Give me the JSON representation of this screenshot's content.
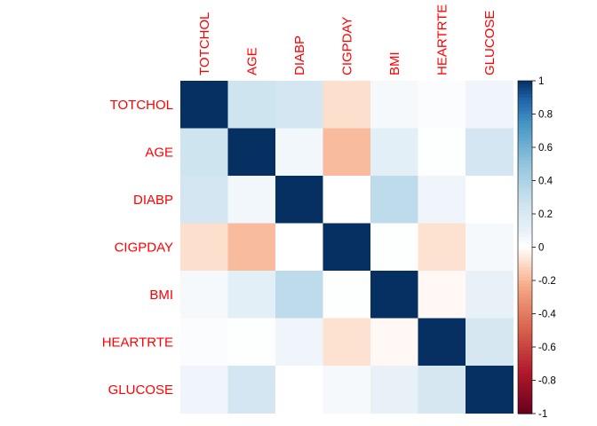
{
  "chart_data": {
    "type": "heatmap",
    "title": "",
    "row_labels": [
      "TOTCHOL",
      "AGE",
      "DIABP",
      "CIGPDAY",
      "BMI",
      "HEARTRTE",
      "GLUCOSE"
    ],
    "col_labels": [
      "TOTCHOL",
      "AGE",
      "DIABP",
      "CIGPDAY",
      "BMI",
      "HEARTRTE",
      "GLUCOSE"
    ],
    "matrix": [
      [
        1.0,
        0.26,
        0.24,
        -0.09,
        0.04,
        0.02,
        0.07
      ],
      [
        0.26,
        1.0,
        0.06,
        -0.19,
        0.13,
        0.01,
        0.24
      ],
      [
        0.24,
        0.06,
        1.0,
        0.0,
        0.33,
        0.07,
        0.0
      ],
      [
        -0.09,
        -0.19,
        0.0,
        1.0,
        0.01,
        -0.08,
        0.04
      ],
      [
        0.04,
        0.13,
        0.33,
        0.01,
        1.0,
        -0.02,
        0.1
      ],
      [
        0.02,
        0.01,
        0.07,
        -0.08,
        -0.02,
        1.0,
        0.22
      ],
      [
        0.07,
        0.24,
        0.0,
        0.04,
        0.1,
        0.22,
        1.0
      ]
    ],
    "colorbar": {
      "range": [
        -1,
        1
      ],
      "ticks": [
        {
          "value": 1,
          "label": "1"
        },
        {
          "value": 0.8,
          "label": "0.8"
        },
        {
          "value": 0.6,
          "label": "0.6"
        },
        {
          "value": 0.4,
          "label": "0.4"
        },
        {
          "value": 0.2,
          "label": "0.2"
        },
        {
          "value": 0,
          "label": "0"
        },
        {
          "value": -0.2,
          "label": "-0.2"
        },
        {
          "value": -0.4,
          "label": "-0.4"
        },
        {
          "value": -0.6,
          "label": "-0.6"
        },
        {
          "value": -0.8,
          "label": "-0.8"
        },
        {
          "value": -1,
          "label": "-1"
        }
      ]
    },
    "colors": {
      "label": "#ff0000",
      "negative_end": "#67001f",
      "negative_mid": "#d6604d",
      "neutral": "#ffffff",
      "positive_mid": "#4393c3",
      "positive_end": "#053061",
      "tick_text": "#000000"
    },
    "grid": false,
    "legend_position": "right"
  }
}
